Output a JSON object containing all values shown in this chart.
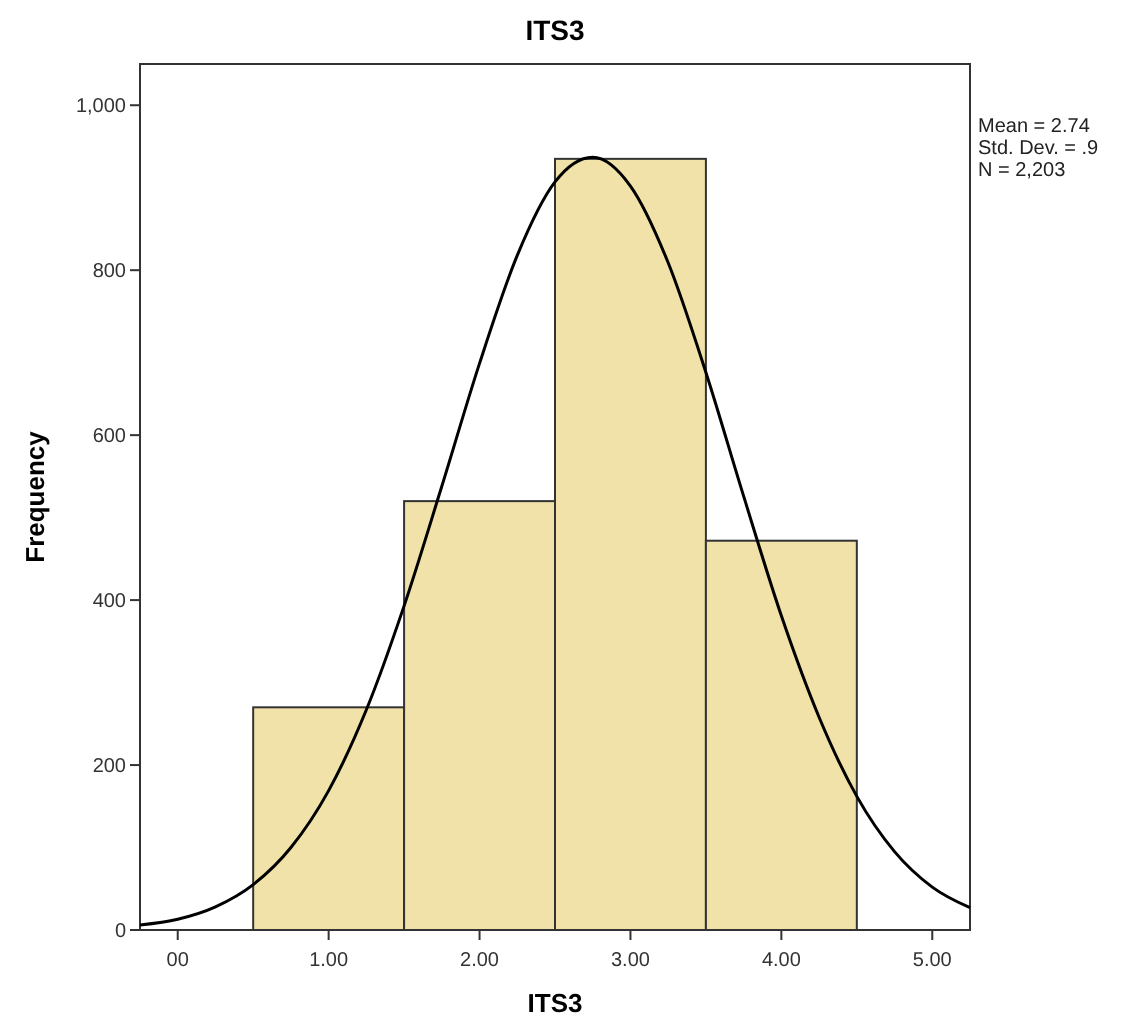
{
  "chart_data": {
    "type": "histogram",
    "title": "ITS3",
    "xlabel": "ITS3",
    "ylabel": "Frequency",
    "bins": [
      0.5,
      1.5,
      2.5,
      3.5,
      4.5
    ],
    "series": [
      {
        "color": "#f0e2a8",
        "values": [
          270,
          520,
          935,
          472
        ]
      },
      {
        "type": "line",
        "color": "#000000",
        "x": [
          -0.25,
          0,
          0.25,
          0.5,
          0.75,
          1,
          1.25,
          1.5,
          1.75,
          2,
          2.25,
          2.5,
          2.75,
          3,
          3.25,
          3.5,
          3.75,
          4,
          4.25,
          4.5,
          4.75,
          5,
          5.25
        ],
        "values": [
          6,
          13,
          28,
          55,
          100,
          169,
          267,
          393,
          538,
          687,
          818,
          907,
          937,
          902,
          809,
          676,
          526,
          381,
          258,
          162,
          95,
          52,
          27
        ]
      }
    ],
    "xlim": [
      -0.25,
      5.25
    ],
    "xticks": [
      {
        "value": 0,
        "label": "00"
      },
      {
        "value": 1,
        "label": "1.00"
      },
      {
        "value": 2,
        "label": "2.00"
      },
      {
        "value": 3,
        "label": "3.00"
      },
      {
        "value": 4,
        "label": "4.00"
      },
      {
        "value": 5,
        "label": "5.00"
      }
    ],
    "ylim": [
      0,
      1050
    ],
    "yticks": [
      0,
      200,
      400,
      600,
      800,
      {
        "value": 1000,
        "label": "1,000"
      }
    ],
    "annotations": [
      "Mean = 2.74",
      "Std. Dev. = .9",
      "N = 2,203"
    ]
  }
}
